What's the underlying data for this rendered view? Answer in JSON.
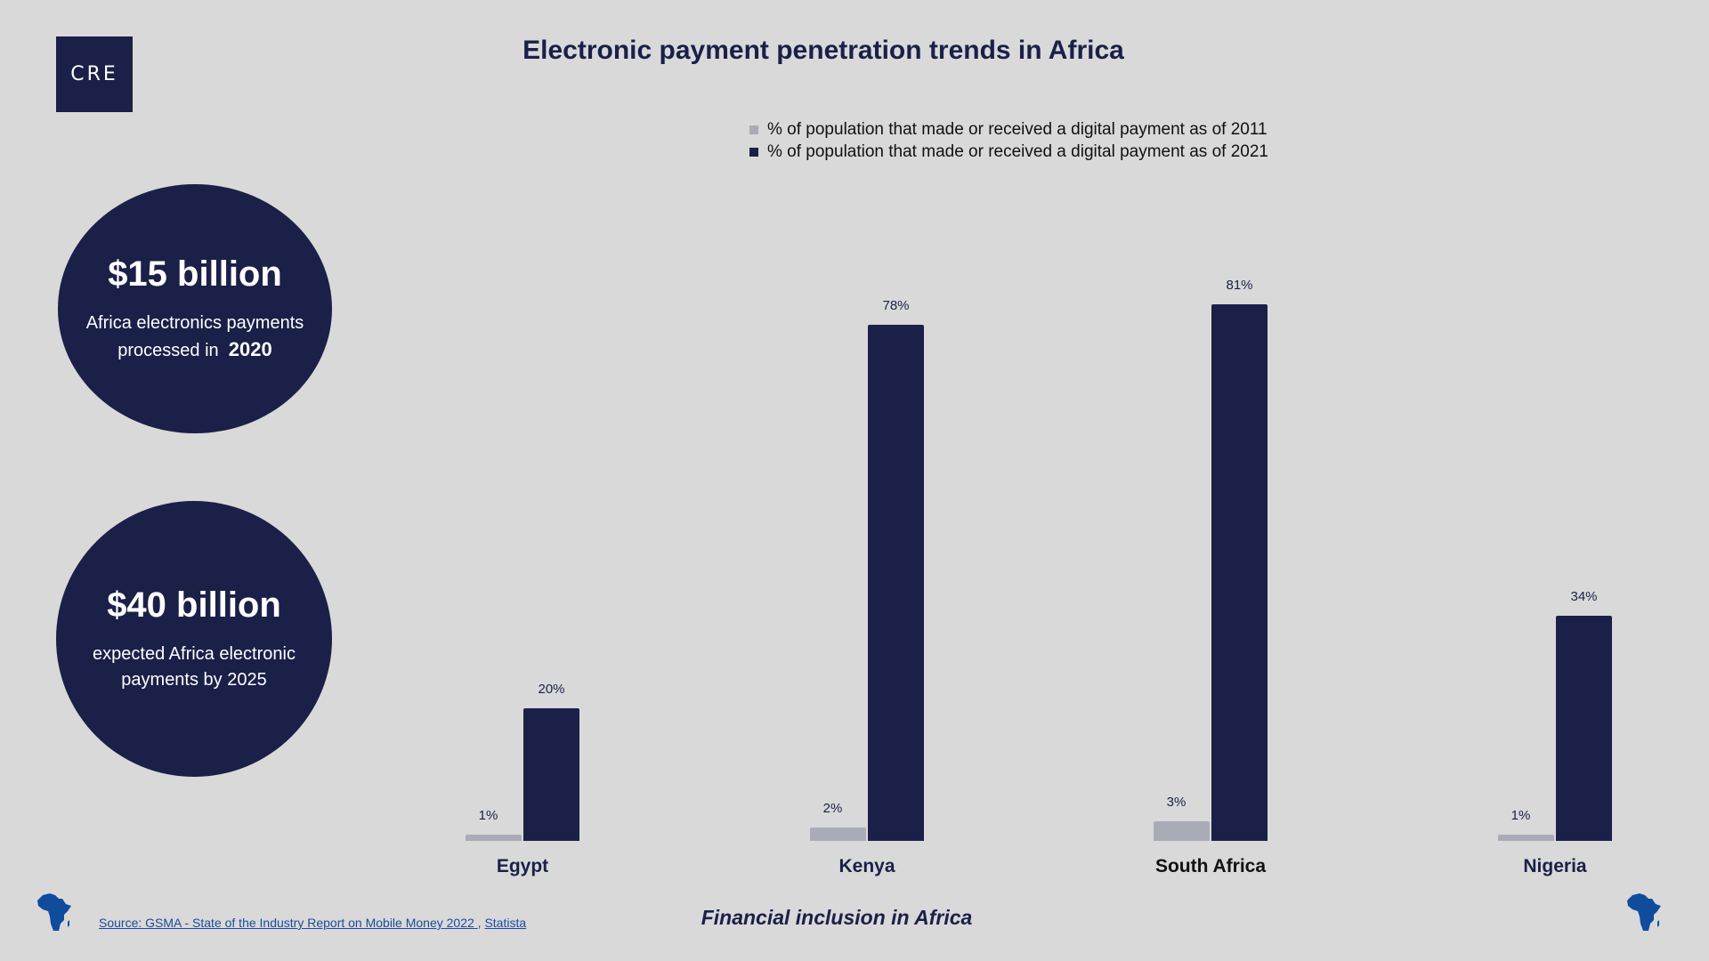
{
  "logo": {
    "text": "CRE"
  },
  "title": "Electronic payment penetration trends in Africa",
  "legend": [
    {
      "label": "% of population that made or received a digital payment as of 2011",
      "color": "#a9acb6"
    },
    {
      "label": "% of population that made or received a digital payment as of 2021",
      "color": "#1a2048"
    }
  ],
  "stats": [
    {
      "value": "$15 billion",
      "desc_line1": "Africa electronics payments",
      "desc_line2_prefix": "processed in",
      "desc_line2_bold": "2020"
    },
    {
      "value": "$40 billion",
      "desc_line1": "expected Africa electronic",
      "desc_line2": "payments by 2025"
    }
  ],
  "x_axis_title": "Financial inclusion in Africa",
  "source": {
    "prefix_link": "Source: GSMA - State of the Industry Report on Mobile Money 2022 ",
    "separator": ",",
    "second_link": "Statista"
  },
  "icons": {
    "left": "africa-map-icon",
    "right": "africa-map-icon"
  },
  "colors": {
    "background": "#d9d9d9",
    "navy": "#1a2048",
    "grey": "#a9acb6",
    "link": "#1e4a9a",
    "africa": "#0f4c9c"
  },
  "chart_data": {
    "type": "bar",
    "title": "Electronic payment penetration trends in Africa",
    "xlabel": "Financial inclusion in Africa",
    "ylabel": "",
    "categories": [
      "Egypt",
      "Kenya",
      "South Africa",
      "Nigeria"
    ],
    "series": [
      {
        "name": "% of population that made or received a digital payment as of 2011",
        "values": [
          1,
          2,
          3,
          1
        ],
        "labels": [
          "1%",
          "2%",
          "3%",
          "1%"
        ]
      },
      {
        "name": "% of population that made or received a digital payment as of 2021",
        "values": [
          20,
          78,
          81,
          34
        ],
        "labels": [
          "20%",
          "78%",
          "81%",
          "34%"
        ]
      }
    ],
    "ylim": [
      0,
      100
    ],
    "grid": false,
    "legend_position": "top"
  }
}
